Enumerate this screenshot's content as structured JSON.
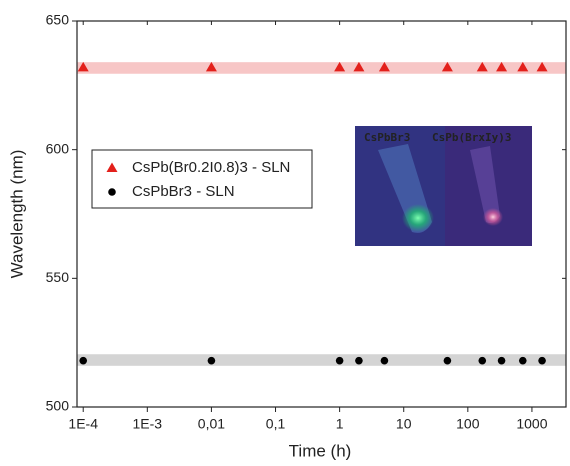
{
  "chart_data": {
    "type": "scatter",
    "x_label": "Time (h)",
    "y_label": "Wavelength (nm)",
    "log_x": true,
    "xlim": [
      8e-05,
      3400
    ],
    "ylim": [
      500,
      650
    ],
    "xticks": [
      {
        "value": 0.0001,
        "label": "1E-4"
      },
      {
        "value": 0.001,
        "label": "1E-3"
      },
      {
        "value": 0.01,
        "label": "0,01"
      },
      {
        "value": 0.1,
        "label": "0,1"
      },
      1,
      10,
      100,
      1000
    ],
    "yticks": [
      500,
      550,
      600,
      650
    ],
    "legend": "left",
    "series": [
      {
        "name": "CsPb(Br0.2I0.8)3 - SLN",
        "color": "#e3201b",
        "marker": "triangle",
        "x": [
          0.0001,
          0.01,
          1,
          2,
          5,
          48,
          168,
          336,
          720,
          1440
        ],
        "values": [
          632,
          632,
          632,
          632,
          632,
          632,
          632,
          632,
          632,
          632
        ],
        "band": [
          629.5,
          634
        ],
        "band_color": "#f7c6c6"
      },
      {
        "name": "CsPbBr3 - SLN",
        "color": "#000000",
        "marker": "circle",
        "x": [
          0.0001,
          0.01,
          1,
          2,
          5,
          48,
          168,
          336,
          720,
          1440
        ],
        "values": [
          518,
          518,
          518,
          518,
          518,
          518,
          518,
          518,
          518,
          518
        ],
        "band": [
          516,
          520.5
        ],
        "band_color": "#d4d4d4"
      }
    ],
    "inset_labels": [
      {
        "text": "CsPbBr3",
        "color": "#2fd67a"
      },
      {
        "text": "CsPb(BrxIy)3",
        "color": "#ff3a4a"
      }
    ]
  }
}
